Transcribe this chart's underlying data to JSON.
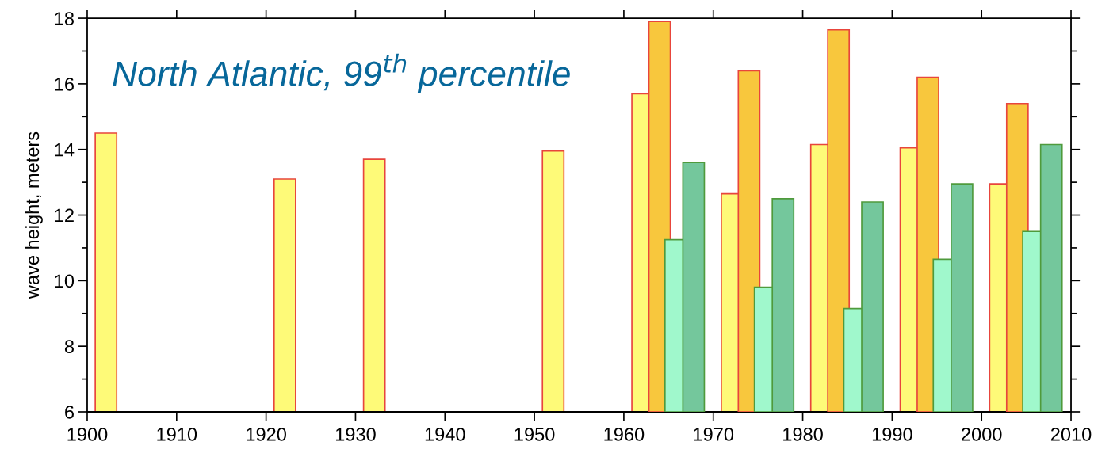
{
  "chart_data": {
    "type": "bar",
    "title": "North Atlantic, 99$^{th}$ percentile",
    "ylabel": "wave height, meters",
    "xlim": [
      1900,
      2010
    ],
    "xticks": [
      1900,
      1910,
      1920,
      1930,
      1940,
      1950,
      1960,
      1970,
      1980,
      1990,
      2000,
      2010
    ],
    "ylim": [
      6,
      18
    ],
    "yticks": [
      6,
      8,
      10,
      12,
      14,
      16,
      18
    ],
    "grid": false,
    "legend": false,
    "series": [
      {
        "color": "#fefa78",
        "x": [
          1902.1,
          1922.1,
          1932.1,
          1952.1,
          1962.1,
          1972.1,
          1982.1,
          1992.1,
          2002.1
        ],
        "values": [
          14.5,
          13.1,
          13.7,
          13.95,
          15.7,
          12.65,
          14.15,
          14.05,
          12.95
        ]
      },
      {
        "color": "#f8c73d",
        "x": [
          1964.0,
          1974.0,
          1984.0,
          1994.0,
          2004.0
        ],
        "values": [
          17.9,
          16.4,
          17.65,
          16.2,
          15.4
        ]
      },
      {
        "color": "#a0f8cc",
        "x": [
          1965.8,
          1975.8,
          1985.8,
          1995.8,
          2005.8
        ],
        "values": [
          11.25,
          9.8,
          9.15,
          10.65,
          11.5
        ]
      },
      {
        "color": "#74c79c",
        "x": [
          1967.8,
          1977.8,
          1987.8,
          1997.8,
          2007.8
        ],
        "values": [
          13.6,
          12.5,
          12.4,
          12.95,
          14.15
        ]
      }
    ]
  }
}
